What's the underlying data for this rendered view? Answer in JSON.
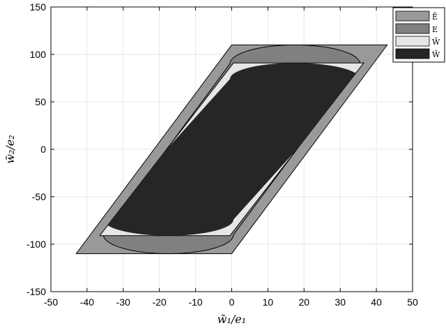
{
  "chart_data": {
    "type": "area",
    "title": "",
    "xlabel": "w̃₁/e₁",
    "ylabel": "w̃₂/e₂",
    "xlim": [
      -50,
      50
    ],
    "ylim": [
      -150,
      150
    ],
    "xticks": [
      -50,
      -40,
      -30,
      -20,
      -10,
      0,
      10,
      20,
      30,
      40,
      50
    ],
    "yticks": [
      -150,
      -100,
      -50,
      0,
      50,
      100,
      150
    ],
    "grid": true,
    "legend_position": "top-right",
    "series": [
      {
        "name": "Ē",
        "color": "#999999",
        "shape": "parallelogram",
        "points": [
          [
            -43,
            -110
          ],
          [
            0,
            -110
          ],
          [
            43,
            110
          ],
          [
            0,
            110
          ]
        ]
      },
      {
        "name": "E",
        "color": "#808080",
        "shape": "stadium",
        "center_bottom": [
          -17.5,
          -90
        ],
        "center_top": [
          17.5,
          90
        ],
        "rx": 18,
        "ry": 20
      },
      {
        "name": "W̄",
        "color": "#e6e6e6",
        "shape": "parallelogram",
        "points": [
          [
            -36.5,
            -91
          ],
          [
            -0.5,
            -91
          ],
          [
            36.5,
            91
          ],
          [
            0.5,
            91
          ]
        ]
      },
      {
        "name": "Ŵ",
        "color": "#262626",
        "shape": "clipped-stadium",
        "center_bottom": [
          -17.5,
          -74
        ],
        "center_top": [
          17.5,
          74
        ],
        "rx": 18,
        "ry": 17
      }
    ]
  }
}
